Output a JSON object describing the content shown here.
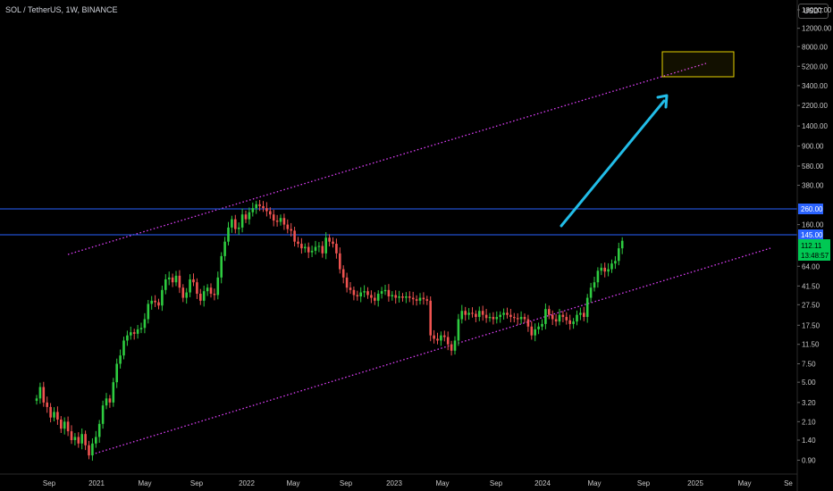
{
  "header": {
    "title": "SOL / TetherUS, 1W, BINANCE",
    "currency": "USDT"
  },
  "colors": {
    "background": "#000000",
    "up": "#26a69a",
    "up_bright": "#2ecc40",
    "down": "#ef5350",
    "channel": "#e040fb",
    "hline": "#2962ff",
    "arrow": "#22bde8",
    "target_box": "#e6d200",
    "price_label": "#00c853"
  },
  "chart_data": {
    "type": "candlestick",
    "scale": "log",
    "symbol": "SOL / TetherUS",
    "interval": "1W",
    "exchange": "BINANCE",
    "ylim": [
      0.75,
      25000
    ],
    "y_ticks": [
      "18000.00",
      "12000.00",
      "8000.00",
      "5200.00",
      "3400.00",
      "2200.00",
      "1400.00",
      "900.00",
      "580.00",
      "380.00",
      "160.00",
      "112.11",
      "64.00",
      "41.50",
      "27.50",
      "17.50",
      "11.50",
      "7.50",
      "5.00",
      "3.20",
      "2.10",
      "1.40",
      "0.90"
    ],
    "x_ticks": [
      "Sep",
      "2021",
      "May",
      "Sep",
      "2022",
      "May",
      "Sep",
      "2023",
      "May",
      "Sep",
      "2024",
      "May",
      "Sep",
      "2025",
      "May",
      "Se"
    ],
    "horizontal_levels": [
      {
        "label": "260.00",
        "value": 260
      },
      {
        "label": "145.00",
        "value": 145
      }
    ],
    "current_price": {
      "label": "112.11",
      "countdown": "13:48:57",
      "value": 112.11
    },
    "approx_closes": [
      3.5,
      4.5,
      3.2,
      2.9,
      2.3,
      2.6,
      2.2,
      1.8,
      2.1,
      1.7,
      1.4,
      1.5,
      1.3,
      1.6,
      1.25,
      1.0,
      1.3,
      1.5,
      2.0,
      3.0,
      3.5,
      3.2,
      5.0,
      7.5,
      9.0,
      12.5,
      14.0,
      15.0,
      14.5,
      16.0,
      16.5,
      20.0,
      28.0,
      30.0,
      29.0,
      27.0,
      38.0,
      48.0,
      50.0,
      45.0,
      52.0,
      40.0,
      32.0,
      36.0,
      48.0,
      45.0,
      35.0,
      30.0,
      37.0,
      40.0,
      35.0,
      34.0,
      50.0,
      80.0,
      110.0,
      150.0,
      180.0,
      145.0,
      150.0,
      200.0,
      180.0,
      210.0,
      230.0,
      250.0,
      240.0,
      230.0,
      215.0,
      200.0,
      175.0,
      170.0,
      185.0,
      160.0,
      145.0,
      140.0,
      110.0,
      105.0,
      95.0,
      98.0,
      87.0,
      90.0,
      98.0,
      100.0,
      85.0,
      120.0,
      110.0,
      105.0,
      85.0,
      60.0,
      50.0,
      40.0,
      38.0,
      34.0,
      33.0,
      36.0,
      37.0,
      34.0,
      32.0,
      30.0,
      35.0,
      37.0,
      38.0,
      33.0,
      34.0,
      32.0,
      33.0,
      32.0,
      33.0,
      32.0,
      31.0,
      30.0,
      32.0,
      31.0,
      30.0,
      14.0,
      13.0,
      12.5,
      14.0,
      13.5,
      11.5,
      10.0,
      12.5,
      20.0,
      24.0,
      22.0,
      23.0,
      22.5,
      21.0,
      24.0,
      22.0,
      20.5,
      21.0,
      20.0,
      21.0,
      22.0,
      23.0,
      22.0,
      21.0,
      20.5,
      20.0,
      21.0,
      20.0,
      17.0,
      14.0,
      16.0,
      17.0,
      18.0,
      25.0,
      22.0,
      20.0,
      19.0,
      22.0,
      21.0,
      19.5,
      18.0,
      19.0,
      22.0,
      23.0,
      21.0,
      32.0,
      40.0,
      45.0,
      58.0,
      62.0,
      57.0,
      60.0,
      68.0,
      72.0,
      95.0,
      112.11
    ]
  }
}
